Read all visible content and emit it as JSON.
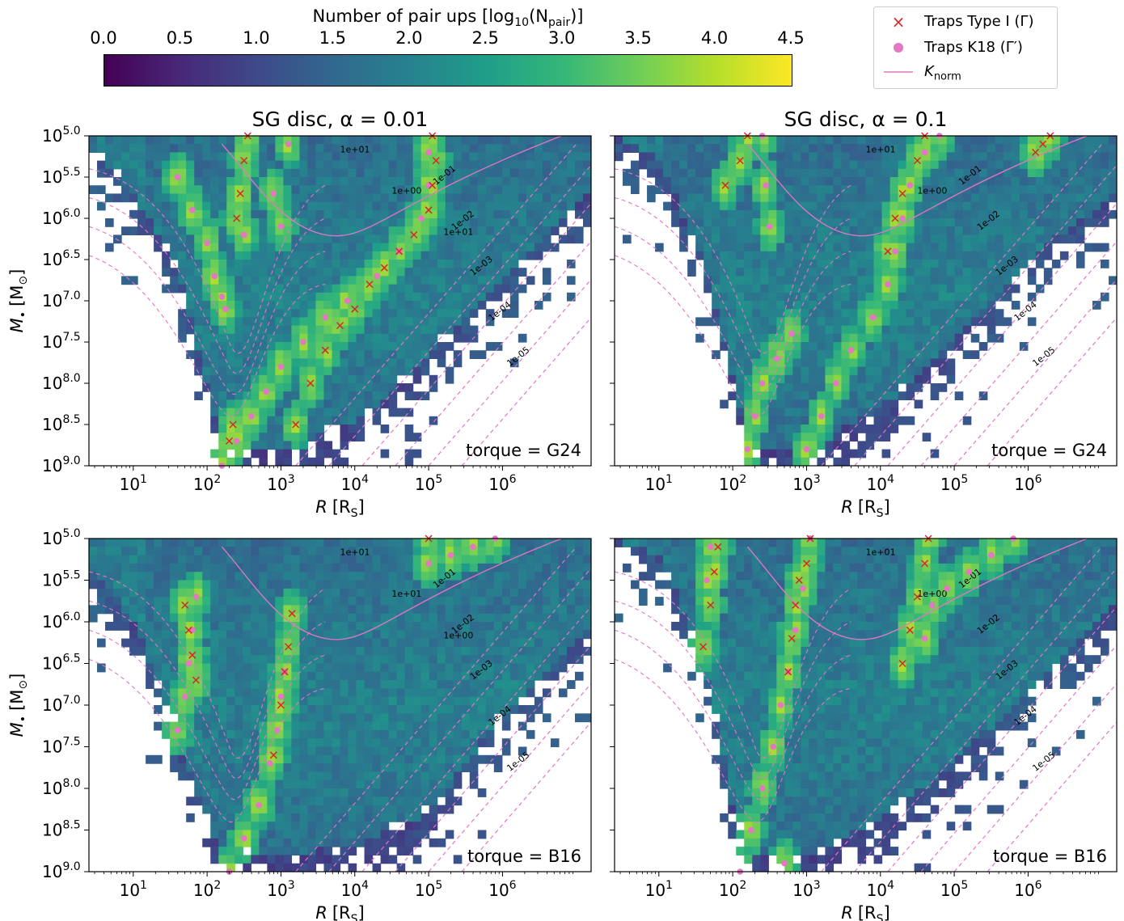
{
  "colorbar": {
    "title_main": "Number of pair ups [log",
    "title_sub10": "10",
    "title_mid": "(N",
    "title_subpair": "pair",
    "title_end": ")]",
    "ticks": [
      "0.0",
      "0.5",
      "1.0",
      "1.5",
      "2.0",
      "2.5",
      "3.0",
      "3.5",
      "4.0",
      "4.5"
    ],
    "colormap": [
      "#440154",
      "#482878",
      "#3e4989",
      "#31688e",
      "#26828e",
      "#1f9e89",
      "#35b779",
      "#6ece58",
      "#b5de2b",
      "#fde725"
    ]
  },
  "legend": {
    "items": [
      {
        "label": "Traps Type I (Γ)",
        "marker": "x",
        "color": "#d62728"
      },
      {
        "label": "Traps K18 (Γ′)",
        "marker": "circle",
        "color": "#e377c2"
      },
      {
        "label_main": "K",
        "label_sub": "norm",
        "marker": "line",
        "color": "#e377c2"
      }
    ]
  },
  "panels": [
    {
      "title": "SG disc, α = 0.01",
      "annotation": "torque = G24",
      "show_ylabel": true
    },
    {
      "title": "SG disc, α = 0.1",
      "annotation": "torque = G24",
      "show_ylabel": false
    },
    {
      "title": "",
      "annotation": "torque = B16",
      "show_ylabel": true
    },
    {
      "title": "",
      "annotation": "torque = B16",
      "show_ylabel": false
    }
  ],
  "axes": {
    "xlabel_main": "R",
    "xlabel_unit": "[R",
    "xlabel_unit_sub": "S",
    "xlabel_close": "]",
    "ylabel_main": "M",
    "ylabel_bullet": "•",
    "ylabel_unit": "[M",
    "ylabel_unit_sub": "⊙",
    "ylabel_close": "]",
    "xticks": [
      {
        "base": "10",
        "exp": "1",
        "value": 1
      },
      {
        "base": "10",
        "exp": "2",
        "value": 2
      },
      {
        "base": "10",
        "exp": "3",
        "value": 3
      },
      {
        "base": "10",
        "exp": "4",
        "value": 4
      },
      {
        "base": "10",
        "exp": "5",
        "value": 5
      },
      {
        "base": "10",
        "exp": "6",
        "value": 6
      }
    ],
    "yticks": [
      {
        "base": "10",
        "exp": "5.0",
        "value": 5.0
      },
      {
        "base": "10",
        "exp": "5.5",
        "value": 5.5
      },
      {
        "base": "10",
        "exp": "6.0",
        "value": 6.0
      },
      {
        "base": "10",
        "exp": "6.5",
        "value": 6.5
      },
      {
        "base": "10",
        "exp": "7.0",
        "value": 7.0
      },
      {
        "base": "10",
        "exp": "7.5",
        "value": 7.5
      },
      {
        "base": "10",
        "exp": "8.0",
        "value": 8.0
      },
      {
        "base": "10",
        "exp": "8.5",
        "value": 8.5
      },
      {
        "base": "10",
        "exp": "9.0",
        "value": 9.0
      }
    ],
    "xlim_log10": [
      0.4,
      7.2
    ],
    "ylim_log10": [
      5.0,
      9.0
    ],
    "yscale": "log, inverted"
  },
  "chart_data": [
    {
      "type": "heatmap",
      "title": "SG disc, α = 0.01",
      "annotation": "torque = G24",
      "traps_type1": [
        [
          2.3,
          8.7
        ],
        [
          2.35,
          8.5
        ],
        [
          2.4,
          6.0
        ],
        [
          2.45,
          5.7
        ],
        [
          2.5,
          5.3
        ],
        [
          2.55,
          5.0
        ],
        [
          3.2,
          8.5
        ],
        [
          3.4,
          8.0
        ],
        [
          3.6,
          7.6
        ],
        [
          3.8,
          7.3
        ],
        [
          4.0,
          7.1
        ],
        [
          4.2,
          6.8
        ],
        [
          4.4,
          6.6
        ],
        [
          4.6,
          6.4
        ],
        [
          4.8,
          6.2
        ],
        [
          5.0,
          5.9
        ],
        [
          5.05,
          5.6
        ],
        [
          5.1,
          5.3
        ],
        [
          5.05,
          5.0
        ]
      ],
      "traps_k18": [
        [
          1.6,
          5.5
        ],
        [
          1.8,
          5.9
        ],
        [
          2.0,
          6.3
        ],
        [
          2.1,
          6.7
        ],
        [
          2.2,
          6.95
        ],
        [
          2.25,
          7.1
        ],
        [
          2.5,
          6.2
        ],
        [
          2.9,
          5.7
        ],
        [
          3.0,
          6.1
        ],
        [
          3.1,
          5.1
        ],
        [
          2.2,
          9.0
        ],
        [
          2.4,
          8.7
        ],
        [
          2.6,
          8.4
        ],
        [
          2.8,
          8.1
        ],
        [
          3.0,
          7.8
        ],
        [
          3.3,
          7.5
        ],
        [
          3.6,
          7.2
        ],
        [
          3.9,
          7.0
        ],
        [
          4.3,
          6.7
        ],
        [
          4.6,
          6.4
        ],
        [
          4.9,
          6.0
        ],
        [
          5.0,
          5.6
        ],
        [
          5.0,
          5.2
        ]
      ],
      "knorm_solid_labels": [
        "1e+01",
        "1e+00",
        "1e+01"
      ],
      "knorm_dashed_labels": [
        "1e-01",
        "1e-02",
        "1e-03",
        "1e-04",
        "1e-05"
      ]
    },
    {
      "type": "heatmap",
      "title": "SG disc, α = 0.1",
      "annotation": "torque = G24",
      "traps_type1": [
        [
          1.9,
          5.6
        ],
        [
          2.1,
          5.3
        ],
        [
          2.2,
          5.0
        ],
        [
          4.1,
          6.4
        ],
        [
          4.2,
          6.0
        ],
        [
          4.3,
          5.7
        ],
        [
          4.5,
          5.3
        ],
        [
          4.6,
          5.0
        ],
        [
          6.1,
          5.2
        ],
        [
          6.2,
          5.1
        ],
        [
          6.3,
          5.0
        ]
      ],
      "traps_k18": [
        [
          2.4,
          5.0
        ],
        [
          2.45,
          5.6
        ],
        [
          2.5,
          6.1
        ],
        [
          2.2,
          8.8
        ],
        [
          2.3,
          8.4
        ],
        [
          2.4,
          8.0
        ],
        [
          2.6,
          7.7
        ],
        [
          2.8,
          7.4
        ],
        [
          3.0,
          8.8
        ],
        [
          3.2,
          8.4
        ],
        [
          3.4,
          8.0
        ],
        [
          3.6,
          7.6
        ],
        [
          3.9,
          7.2
        ],
        [
          4.1,
          6.8
        ],
        [
          4.2,
          6.4
        ],
        [
          4.3,
          6.0
        ],
        [
          4.4,
          5.6
        ],
        [
          4.6,
          5.2
        ],
        [
          4.8,
          5.0
        ]
      ],
      "knorm_solid_labels": [
        "1e+01",
        "1e+00"
      ],
      "knorm_dashed_labels": [
        "1e-01",
        "1e-02",
        "1e-03",
        "1e-04",
        "1e-05"
      ]
    },
    {
      "type": "heatmap",
      "title": "",
      "annotation": "torque = B16",
      "traps_type1": [
        [
          1.7,
          5.8
        ],
        [
          1.75,
          6.1
        ],
        [
          1.8,
          6.4
        ],
        [
          1.85,
          6.7
        ],
        [
          2.9,
          7.6
        ],
        [
          3.0,
          7.0
        ],
        [
          3.05,
          6.6
        ],
        [
          3.1,
          6.3
        ],
        [
          3.15,
          5.9
        ],
        [
          5.0,
          5.0
        ]
      ],
      "traps_k18": [
        [
          1.6,
          7.3
        ],
        [
          1.7,
          6.9
        ],
        [
          1.75,
          6.5
        ],
        [
          1.8,
          6.1
        ],
        [
          1.85,
          5.7
        ],
        [
          2.3,
          9.0
        ],
        [
          2.5,
          8.6
        ],
        [
          2.7,
          8.2
        ],
        [
          2.85,
          7.7
        ],
        [
          2.95,
          7.3
        ],
        [
          3.0,
          6.9
        ],
        [
          3.05,
          6.6
        ],
        [
          5.0,
          5.3
        ],
        [
          5.3,
          5.2
        ],
        [
          5.6,
          5.1
        ],
        [
          5.9,
          5.0
        ]
      ],
      "knorm_solid_labels": [
        "1e+01",
        "1e+01",
        "1e+00"
      ],
      "knorm_dashed_labels": [
        "1e-01",
        "1e-02",
        "1e-03",
        "1e-04",
        "1e-05"
      ]
    },
    {
      "type": "heatmap",
      "title": "",
      "annotation": "torque = B16",
      "traps_type1": [
        [
          1.6,
          6.3
        ],
        [
          1.7,
          5.8
        ],
        [
          1.75,
          5.4
        ],
        [
          1.8,
          5.1
        ],
        [
          2.75,
          6.6
        ],
        [
          2.8,
          6.2
        ],
        [
          2.85,
          5.8
        ],
        [
          2.9,
          5.5
        ],
        [
          3.0,
          5.3
        ],
        [
          3.05,
          5.0
        ],
        [
          4.3,
          6.5
        ],
        [
          4.4,
          6.1
        ],
        [
          4.5,
          5.7
        ],
        [
          4.6,
          5.3
        ],
        [
          4.65,
          5.0
        ]
      ],
      "traps_k18": [
        [
          1.65,
          5.5
        ],
        [
          1.7,
          5.1
        ],
        [
          2.1,
          9.0
        ],
        [
          2.25,
          8.5
        ],
        [
          2.4,
          8.0
        ],
        [
          2.55,
          7.5
        ],
        [
          2.65,
          7.0
        ],
        [
          2.75,
          6.6
        ],
        [
          2.85,
          6.1
        ],
        [
          2.95,
          5.6
        ],
        [
          3.05,
          5.0
        ],
        [
          2.7,
          8.9
        ],
        [
          4.6,
          6.2
        ],
        [
          4.7,
          5.8
        ],
        [
          4.9,
          5.6
        ],
        [
          5.2,
          5.4
        ],
        [
          5.5,
          5.2
        ],
        [
          5.8,
          5.0
        ]
      ],
      "knorm_solid_labels": [
        "1e+01",
        "1e+00"
      ],
      "knorm_dashed_labels": [
        "1e-01",
        "1e-02",
        "1e-03",
        "1e-04",
        "1e-05"
      ]
    }
  ]
}
